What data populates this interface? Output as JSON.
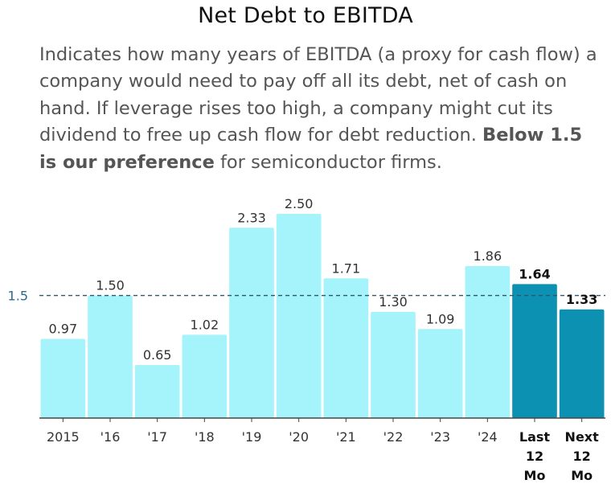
{
  "title": "Net Debt to EBITDA",
  "description": {
    "prefix": "Indicates how many years of EBITDA (a proxy for cash flow) a company would need to pay off all its debt, net of cash on hand. If leverage rises too high, a company might cut its dividend to free up cash flow for debt reduction. ",
    "emphasis": "Below 1.5 is our preference",
    "suffix": " for semiconductor firms."
  },
  "chart_data": {
    "type": "bar",
    "categories": [
      "2015",
      "'16",
      "'17",
      "'18",
      "'19",
      "'20",
      "'21",
      "'22",
      "'23",
      "'24",
      "Last 12 Mo",
      "Next 12 Mo"
    ],
    "category_lines": [
      [
        "2015"
      ],
      [
        "'16"
      ],
      [
        "'17"
      ],
      [
        "'18"
      ],
      [
        "'19"
      ],
      [
        "'20"
      ],
      [
        "'21"
      ],
      [
        "'22"
      ],
      [
        "'23"
      ],
      [
        "'24"
      ],
      [
        "Last",
        "12",
        "Mo"
      ],
      [
        "Next",
        "12",
        "Mo"
      ]
    ],
    "values": [
      0.97,
      1.5,
      0.65,
      1.02,
      2.33,
      2.5,
      1.71,
      1.3,
      1.09,
      1.86,
      1.64,
      1.33
    ],
    "value_labels": [
      "0.97",
      "1.50",
      "0.65",
      "1.02",
      "2.33",
      "2.50",
      "1.71",
      "1.30",
      "1.09",
      "1.86",
      "1.64",
      "1.33"
    ],
    "highlight": [
      false,
      false,
      false,
      false,
      false,
      false,
      false,
      false,
      false,
      false,
      true,
      true
    ],
    "reference_line": {
      "value": 1.5,
      "label": "1.5",
      "style": "dashed"
    },
    "ylim": [
      0,
      2.5
    ],
    "grid": false,
    "colors": {
      "bar": "#a6f4fb",
      "highlight": "#0c91b2",
      "reference": "#2e5570",
      "axis": "#444444"
    }
  }
}
